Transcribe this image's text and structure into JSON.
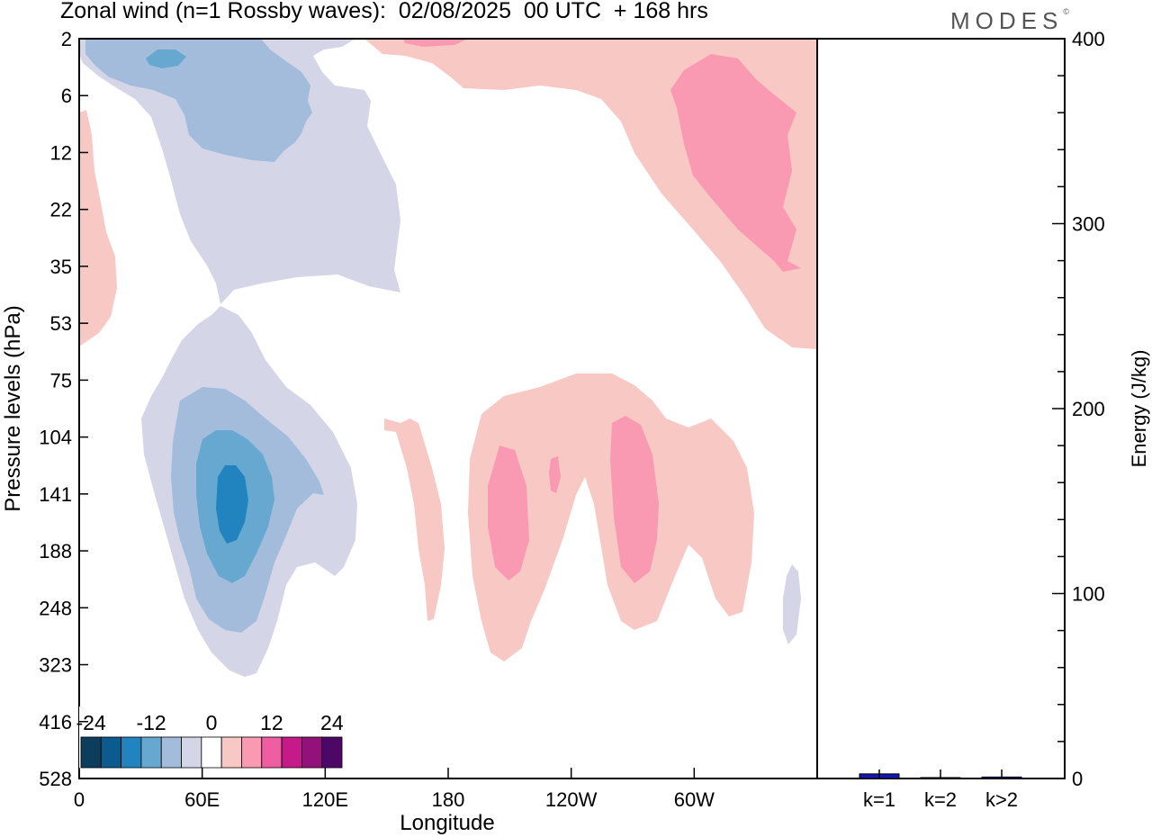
{
  "title": "Zonal wind (n=1 Rossby waves):  02/08/2025  00 UTC  + 168 hrs",
  "brand": {
    "name": "MODES",
    "mark": "©"
  },
  "chart_data": [
    {
      "type": "contour",
      "title": "Zonal wind (n=1 Rossby waves):  02/08/2025  00 UTC  + 168 hrs",
      "xlabel": "Longitude",
      "ylabel": "Pressure levels (hPa)",
      "x_ticks": [
        "0",
        "60E",
        "120E",
        "180",
        "120W",
        "60W"
      ],
      "x_tick_degrees": [
        0,
        60,
        120,
        180,
        240,
        300
      ],
      "xlim": [
        0,
        360
      ],
      "y_ticks": [
        "2",
        "6",
        "12",
        "22",
        "35",
        "53",
        "75",
        "104",
        "141",
        "188",
        "248",
        "323",
        "416",
        "528"
      ],
      "colorbar": {
        "tick_labels": [
          "-24",
          "-12",
          "0",
          "12",
          "24"
        ],
        "levels": [
          -28,
          -24,
          -20,
          -16,
          -12,
          -8,
          -4,
          4,
          8,
          12,
          16,
          20,
          24,
          28
        ],
        "colors": [
          "#0d3d5c",
          "#0c5b8f",
          "#2184bf",
          "#66a8d0",
          "#a3bcdc",
          "#d4d6e8",
          "#ffffff",
          "#f8c8c4",
          "#f99ab2",
          "#ee5ea0",
          "#c41a8a",
          "#93117a",
          "#4d0866"
        ]
      },
      "features": [
        {
          "name": "easterly upper stratosphere 20E-120E",
          "level": "-4"
        },
        {
          "name": "easterly core 40E-90E",
          "level": "-8"
        },
        {
          "name": "easterly peak near 2 hPa",
          "level": "-12"
        },
        {
          "name": "easterly lower troposphere 30E-130E",
          "level": "-4"
        },
        {
          "name": "easterly jet core near 141 hPa, 70E",
          "level": "-16"
        },
        {
          "name": "westerly upper stratosphere 150E-180",
          "level": "4"
        },
        {
          "name": "westerly upper stratosphere 90W-0",
          "level": "4"
        },
        {
          "name": "westerly core 2-35 hPa, 30W-75W",
          "level": "8"
        },
        {
          "name": "westerly troposphere 170E-60W",
          "level": "4"
        },
        {
          "name": "westerly cores near 141 hPa, 160W and 120W",
          "level": "8"
        }
      ]
    },
    {
      "type": "bar",
      "ylabel": "Energy (J/kg)",
      "categories": [
        "k=1",
        "k=2",
        "k>2"
      ],
      "values": [
        2.5,
        0.5,
        0.8
      ],
      "ylim": [
        0,
        400
      ],
      "y_ticks": [
        "0",
        "100",
        "200",
        "300",
        "400"
      ],
      "bar_color": "#1515b0"
    }
  ]
}
